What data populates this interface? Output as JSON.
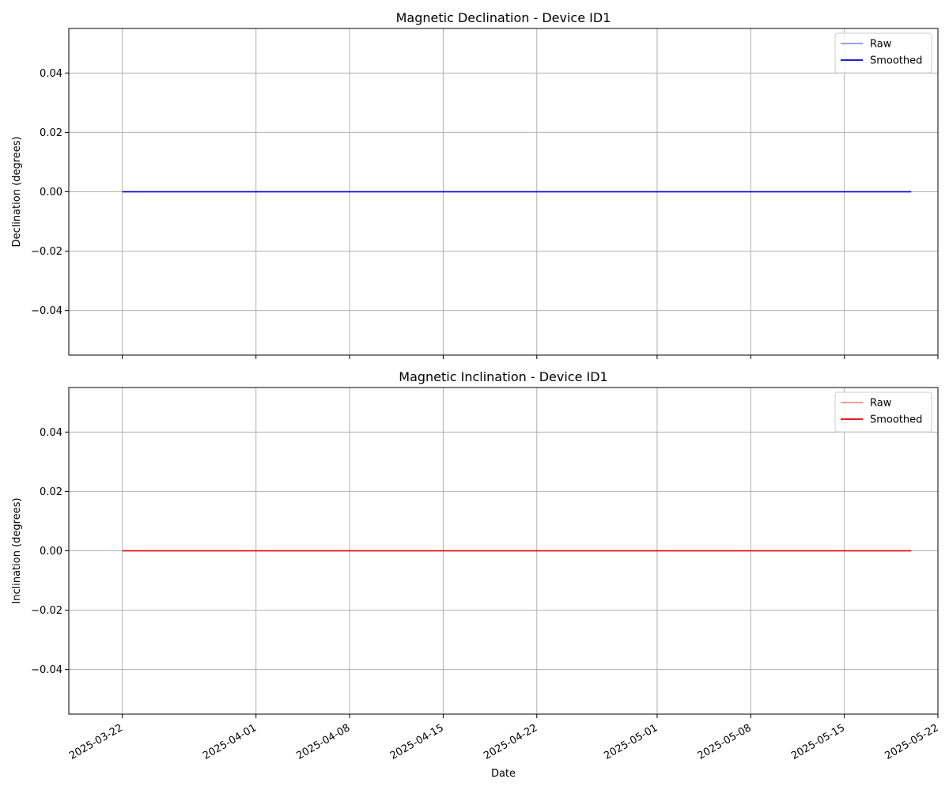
{
  "chart_data": [
    {
      "type": "line",
      "title": "Magnetic Declination - Device ID1",
      "xlabel": "",
      "ylabel": "Declination (degrees)",
      "x_range": [
        "2025-03-18",
        "2025-05-22"
      ],
      "ylim": [
        -0.055,
        0.055
      ],
      "x_ticks": [
        "2025-03-22",
        "2025-04-01",
        "2025-04-08",
        "2025-04-15",
        "2025-04-22",
        "2025-05-01",
        "2025-05-08",
        "2025-05-15",
        "2025-05-22"
      ],
      "y_ticks": [
        0.04,
        0.02,
        0.0,
        -0.02,
        -0.04
      ],
      "y_tick_labels": [
        "0.04",
        "0.02",
        "0.00",
        "−0.02",
        "−0.04"
      ],
      "grid": true,
      "legend": "top-right",
      "series": [
        {
          "name": "Raw",
          "color": "#7b7bff",
          "x": [
            "2025-03-22",
            "2025-05-20"
          ],
          "values": [
            0.0,
            0.0
          ]
        },
        {
          "name": "Smoothed",
          "color": "#0000cc",
          "x": [
            "2025-03-22",
            "2025-05-20"
          ],
          "values": [
            0.0,
            0.0
          ]
        }
      ]
    },
    {
      "type": "line",
      "title": "Magnetic Inclination - Device ID1",
      "xlabel": "Date",
      "ylabel": "Inclination (degrees)",
      "x_range": [
        "2025-03-18",
        "2025-05-22"
      ],
      "ylim": [
        -0.055,
        0.055
      ],
      "x_ticks": [
        "2025-03-22",
        "2025-04-01",
        "2025-04-08",
        "2025-04-15",
        "2025-04-22",
        "2025-05-01",
        "2025-05-08",
        "2025-05-15",
        "2025-05-22"
      ],
      "y_ticks": [
        0.04,
        0.02,
        0.0,
        -0.02,
        -0.04
      ],
      "y_tick_labels": [
        "0.04",
        "0.02",
        "0.00",
        "−0.02",
        "−0.04"
      ],
      "grid": true,
      "legend": "top-right",
      "series": [
        {
          "name": "Raw",
          "color": "#ff7b7b",
          "x": [
            "2025-03-22",
            "2025-05-20"
          ],
          "values": [
            0.0,
            0.0
          ]
        },
        {
          "name": "Smoothed",
          "color": "#dd0000",
          "x": [
            "2025-03-22",
            "2025-05-20"
          ],
          "values": [
            0.0,
            0.0
          ]
        }
      ]
    }
  ]
}
